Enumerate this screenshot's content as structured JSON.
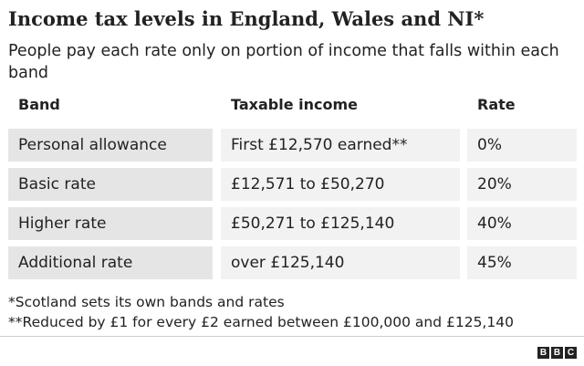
{
  "title": "Income tax levels in England, Wales and NI*",
  "subtitle": "People pay each rate only on portion of income that falls within each band",
  "chart_data": {
    "type": "table",
    "columns": [
      "Band",
      "Taxable income",
      "Rate"
    ],
    "rows": [
      {
        "band": "Personal allowance",
        "income": "First £12,570 earned**",
        "rate": "0%"
      },
      {
        "band": "Basic rate",
        "income": "£12,571 to £50,270",
        "rate": "20%"
      },
      {
        "band": "Higher rate",
        "income": "£50,271 to £125,140",
        "rate": "40%"
      },
      {
        "band": "Additional rate",
        "income": "over £125,140",
        "rate": "45%"
      }
    ]
  },
  "notes": [
    "*Scotland sets its own bands and rates",
    "**Reduced by £1 for every £2 earned between £100,000 and £125,140"
  ],
  "source_logo": "BBC",
  "colors": {
    "band_cell": "#e5e5e5",
    "value_cell": "#f2f2f2",
    "text": "#222222"
  }
}
